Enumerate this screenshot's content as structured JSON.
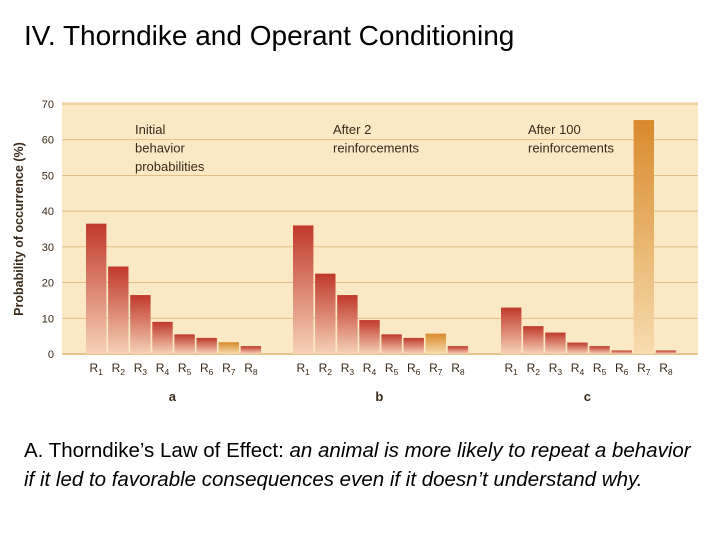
{
  "slide": {
    "title": "IV. Thorndike and Operant Conditioning",
    "caption_lead": "A. Thorndike’s Law of Effect:",
    "caption_body": " an animal is more likely to repeat a behavior if it led to favorable consequences even if it doesn’t understand why."
  },
  "colors": {
    "panel_bg": "#fbe8c4",
    "grid": "#e2b77e",
    "bar_red_top": "#c0392b",
    "bar_red_bottom": "#f6d2b8",
    "bar_orange_top": "#d98a2b",
    "bar_orange_bottom": "#f7dcae",
    "text": "#3a2a1a"
  },
  "chart_data": {
    "type": "bar",
    "ylabel": "Probability of occurrence (%)",
    "ylim": [
      0,
      70
    ],
    "yticks": [
      "0",
      "10",
      "20",
      "30",
      "40",
      "50",
      "60",
      "70"
    ],
    "categories": [
      "R1",
      "R2",
      "R3",
      "R4",
      "R5",
      "R6",
      "R7",
      "R8"
    ],
    "highlight_category": "R7",
    "panels": [
      {
        "label": "a",
        "title_lines": [
          "Initial",
          "behavior",
          "probabilities"
        ],
        "values": [
          36.5,
          24.5,
          16.5,
          9,
          5.5,
          4.5,
          3.3,
          2.2
        ]
      },
      {
        "label": "b",
        "title_lines": [
          "After 2",
          "reinforcements"
        ],
        "values": [
          36,
          22.5,
          16.5,
          9.5,
          5.5,
          4.5,
          5.7,
          2.2
        ]
      },
      {
        "label": "c",
        "title_lines": [
          "After 100",
          "reinforcements"
        ],
        "values": [
          13,
          7.8,
          6,
          3.2,
          2.2,
          1,
          65.5,
          1
        ]
      }
    ]
  }
}
